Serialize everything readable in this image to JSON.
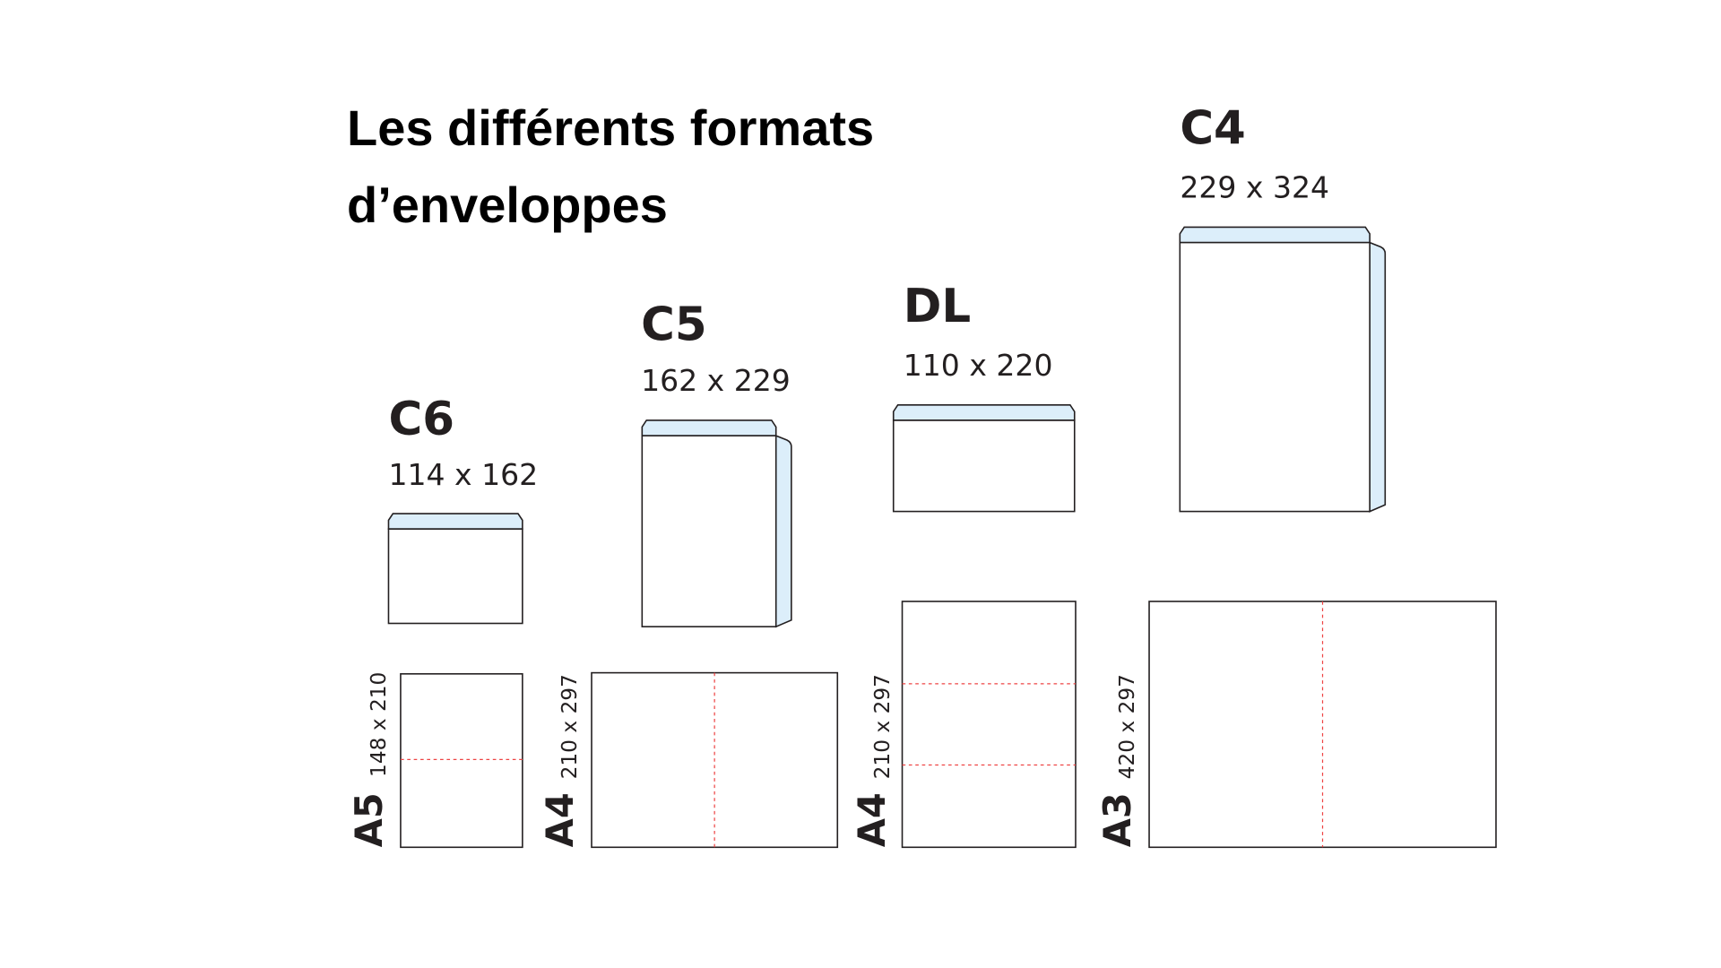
{
  "title": "Les différents formats d’enveloppes",
  "envelopes": [
    {
      "name": "C6",
      "size": "114 x 162"
    },
    {
      "name": "C5",
      "size": "162 x 229"
    },
    {
      "name": "DL",
      "size": "110 x 220"
    },
    {
      "name": "C4",
      "size": "229 x 324"
    }
  ],
  "papers": [
    {
      "name": "A5",
      "size": "148 x 210"
    },
    {
      "name": "A4",
      "size": "210 x 297"
    },
    {
      "name": "A4",
      "size": "210 x 297"
    },
    {
      "name": "A3",
      "size": "420 x 297"
    }
  ]
}
